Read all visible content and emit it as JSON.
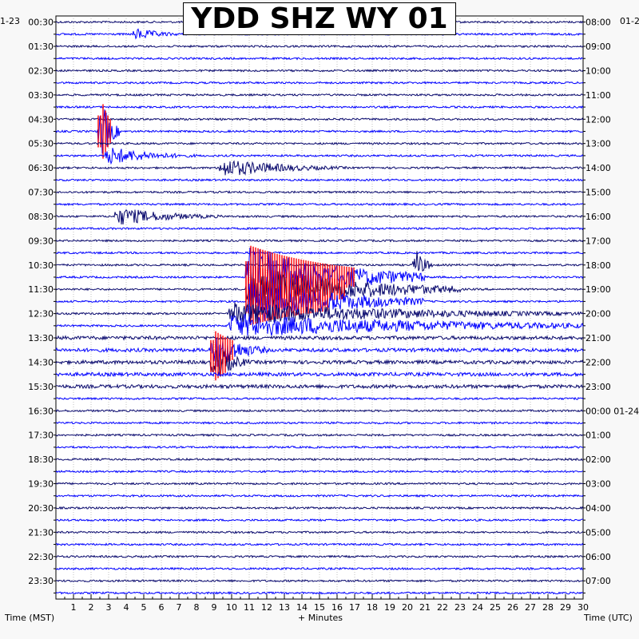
{
  "chart_data": {
    "type": "helicorder",
    "title": "YDD SHZ WY 01",
    "left_date": "1-23",
    "right_date_top": "01-2",
    "right_date_change": "01-24",
    "left_axis_label": "Time (MST)",
    "right_axis_label": "Time (UTC)",
    "x_label": "+ Minutes",
    "x_ticks": [
      "1",
      "2",
      "3",
      "4",
      "5",
      "6",
      "7",
      "8",
      "9",
      "10",
      "11",
      "12",
      "13",
      "14",
      "15",
      "16",
      "17",
      "18",
      "19",
      "20",
      "21",
      "22",
      "23",
      "24",
      "25",
      "26",
      "27",
      "28",
      "29",
      "30"
    ],
    "x_range": [
      0,
      30
    ],
    "left_hour_labels": [
      "00:30",
      "01:30",
      "02:30",
      "03:30",
      "04:30",
      "05:30",
      "06:30",
      "07:30",
      "08:30",
      "09:30",
      "10:30",
      "11:30",
      "12:30",
      "13:30",
      "14:30",
      "15:30",
      "16:30",
      "17:30",
      "18:30",
      "19:30",
      "20:30",
      "21:30",
      "22:30",
      "23:30"
    ],
    "right_hour_labels": [
      "08:00",
      "09:00",
      "10:00",
      "11:00",
      "12:00",
      "13:00",
      "14:00",
      "15:00",
      "16:00",
      "17:00",
      "18:00",
      "19:00",
      "20:00",
      "21:00",
      "22:00",
      "23:00",
      "00:00",
      "01:00",
      "02:00",
      "03:00",
      "04:00",
      "05:00",
      "06:00",
      "07:00"
    ],
    "trace_count": 48,
    "trace_colors": [
      "#0a0a6e",
      "#0000ff"
    ],
    "clip_color": "#ff0000",
    "events": [
      {
        "trace": 1,
        "minute": 4.5,
        "amplitude": 8,
        "duration_min": 3
      },
      {
        "trace": 9,
        "minute": 2.6,
        "amplitude": 40,
        "duration_min": 1,
        "clipped": true
      },
      {
        "trace": 11,
        "minute": 3.0,
        "amplitude": 12,
        "duration_min": 5
      },
      {
        "trace": 12,
        "minute": 9.5,
        "amplitude": 12,
        "duration_min": 7
      },
      {
        "trace": 16,
        "minute": 3.5,
        "amplitude": 12,
        "duration_min": 6
      },
      {
        "trace": 20,
        "minute": 20.5,
        "amplitude": 20,
        "duration_min": 1
      },
      {
        "trace": 21,
        "minute": 11.0,
        "amplitude": 40,
        "duration_min": 10,
        "clipped": true
      },
      {
        "trace": 22,
        "minute": 11.0,
        "amplitude": 30,
        "duration_min": 12,
        "clipped": true
      },
      {
        "trace": 23,
        "minute": 11.0,
        "amplitude": 30,
        "duration_min": 10,
        "clipped": true
      },
      {
        "trace": 24,
        "minute": 10.0,
        "amplitude": 15,
        "duration_min": 20
      },
      {
        "trace": 25,
        "minute": 10.0,
        "amplitude": 15,
        "duration_min": 25
      },
      {
        "trace": 27,
        "minute": 9.0,
        "amplitude": 25,
        "duration_min": 3,
        "clipped": true
      },
      {
        "trace": 28,
        "minute": 9.0,
        "amplitude": 25,
        "duration_min": 2,
        "clipped": true
      }
    ]
  }
}
